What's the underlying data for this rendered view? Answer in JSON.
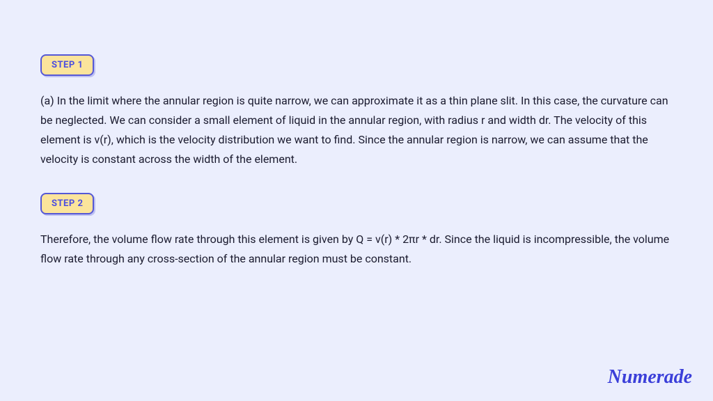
{
  "background_color": "#ebeefd",
  "text_color": "#1a1a2e",
  "badge": {
    "bg_color": "#fbe49b",
    "border_color": "#5558d6",
    "text_color": "#4a4de0",
    "font_size": 13,
    "border_radius": 8
  },
  "steps": [
    {
      "label": "STEP 1",
      "body": "(a) In the limit where the annular region is quite narrow, we can approximate it as a thin plane slit. In this case, the curvature can be neglected. We can consider a small element of liquid in the annular region, with radius r and width dr. The velocity of this element is v(r), which is the velocity distribution we want to find. Since the annular region is narrow, we can assume that the velocity is constant across the width of the element."
    },
    {
      "label": "STEP 2",
      "body": "Therefore, the volume flow rate through this element is given by Q = v(r) * 2πr * dr. Since the liquid is incompressible, the volume flow rate through any cross-section of the annular region must be constant."
    }
  ],
  "body_font_size": 16,
  "body_line_height": 1.75,
  "brand": {
    "text": "Numerade",
    "color": "#3b3fd9",
    "font_size": 28
  }
}
